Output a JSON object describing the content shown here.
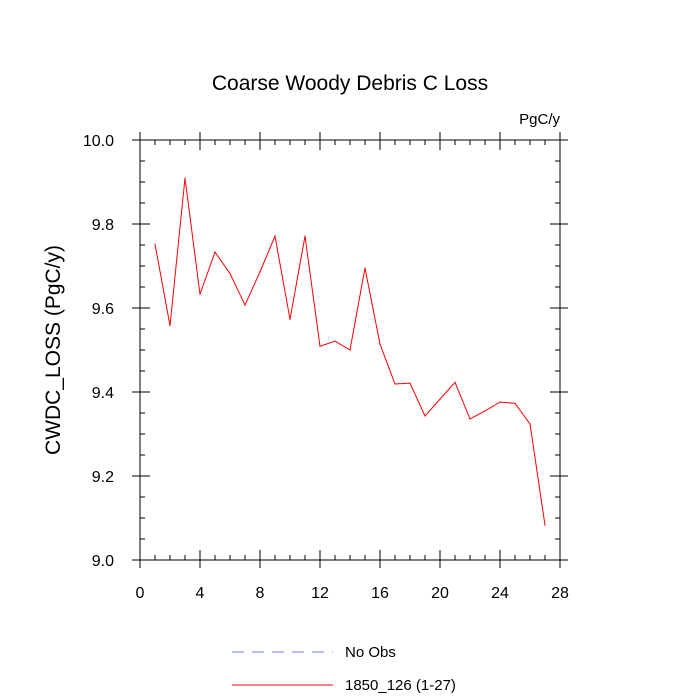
{
  "chart_data": {
    "type": "line",
    "title": "Coarse Woody Debris C Loss",
    "units": "PgC/y",
    "ylabel": "CWDC_LOSS  (PgC/y)",
    "xlabel": "",
    "xlim": [
      0,
      28
    ],
    "ylim": [
      9.0,
      10.0
    ],
    "xticks": [
      0,
      4,
      8,
      12,
      16,
      20,
      24,
      28
    ],
    "xtick_labels": [
      "0",
      "4",
      "8",
      "12",
      "16",
      "20",
      "24",
      "28"
    ],
    "yticks": [
      9.0,
      9.2,
      9.4,
      9.6,
      9.8,
      10.0
    ],
    "ytick_labels": [
      "9.0",
      "9.2",
      "9.4",
      "9.6",
      "9.8",
      "10.0"
    ],
    "grid": false,
    "legend_position": "bottom",
    "series": [
      {
        "name": "1850_126 (1-27)",
        "color": "#ff0000",
        "style": "solid",
        "x": [
          1,
          2,
          3,
          4,
          5,
          6,
          7,
          8,
          9,
          10,
          11,
          12,
          13,
          14,
          15,
          16,
          17,
          18,
          19,
          20,
          21,
          22,
          23,
          24,
          25,
          26,
          27
        ],
        "y": [
          9.752,
          9.558,
          9.909,
          9.633,
          9.733,
          9.682,
          9.607,
          9.686,
          9.771,
          9.573,
          9.771,
          9.509,
          9.521,
          9.5,
          9.695,
          9.514,
          9.419,
          9.421,
          9.343,
          9.383,
          9.423,
          9.336,
          9.355,
          9.376,
          9.373,
          9.324,
          9.083
        ]
      }
    ],
    "legend": [
      {
        "label": "No Obs",
        "color": "#7777ff",
        "style": "dashed"
      },
      {
        "label": "1850_126 (1-27)",
        "color": "#ff0000",
        "style": "solid"
      }
    ]
  }
}
